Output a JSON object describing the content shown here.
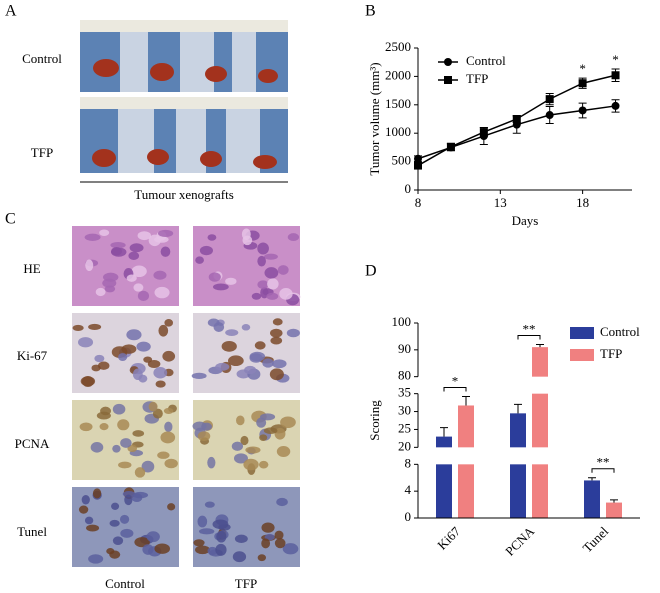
{
  "panels": {
    "a": {
      "label": "A",
      "rows": [
        "Control",
        "TFP"
      ],
      "caption": "Tumour xenografts"
    },
    "c": {
      "label": "C",
      "rows": [
        "HE",
        "Ki-67",
        "PCNA",
        "Tunel"
      ],
      "columns": [
        "Control",
        "TFP"
      ]
    }
  },
  "chart_data": [
    {
      "type": "line",
      "label": "B",
      "xlabel": "Days",
      "ylabel": "Tumor volume (mm³)",
      "x": [
        8,
        10,
        12,
        14,
        16,
        18,
        20
      ],
      "xlim": [
        8,
        21
      ],
      "xticks": [
        8,
        13,
        18
      ],
      "ylim": [
        0,
        2500
      ],
      "yticks": [
        0,
        500,
        1000,
        1500,
        2000,
        2500
      ],
      "series": [
        {
          "name": "Control",
          "color": "#000000",
          "marker": "circle",
          "values": [
            550,
            750,
            950,
            1150,
            1320,
            1400,
            1480
          ],
          "errors": [
            50,
            60,
            150,
            150,
            150,
            130,
            110
          ]
        },
        {
          "name": "TFP",
          "color": "#000000",
          "marker": "square",
          "values": [
            430,
            760,
            1020,
            1250,
            1600,
            1880,
            2020
          ],
          "errors": [
            40,
            60,
            80,
            60,
            100,
            90,
            110
          ]
        }
      ],
      "significance": [
        null,
        null,
        null,
        null,
        null,
        "*",
        "*"
      ],
      "legend": "upper left"
    },
    {
      "type": "bar",
      "label": "D",
      "ylabel": "Scoring",
      "categories": [
        "Ki67",
        "PCNA",
        "Tunel"
      ],
      "y_segments": [
        {
          "ylim": [
            0,
            8
          ],
          "yticks": [
            0,
            4,
            8
          ]
        },
        {
          "ylim": [
            20,
            35
          ],
          "yticks": [
            20,
            25,
            30,
            35
          ]
        },
        {
          "ylim": [
            80,
            100
          ],
          "yticks": [
            80,
            90,
            100
          ]
        }
      ],
      "series": [
        {
          "name": "Control",
          "color": "#2b3d9b",
          "values": [
            23,
            29.5,
            5.6
          ],
          "errors": [
            2.5,
            2.5,
            0.4
          ]
        },
        {
          "name": "TFP",
          "color": "#f08080",
          "values": [
            31.7,
            91,
            2.3
          ],
          "errors": [
            2.5,
            1,
            0.4
          ]
        }
      ],
      "significance": [
        "*",
        "**",
        "**"
      ],
      "legend": "upper right"
    }
  ]
}
